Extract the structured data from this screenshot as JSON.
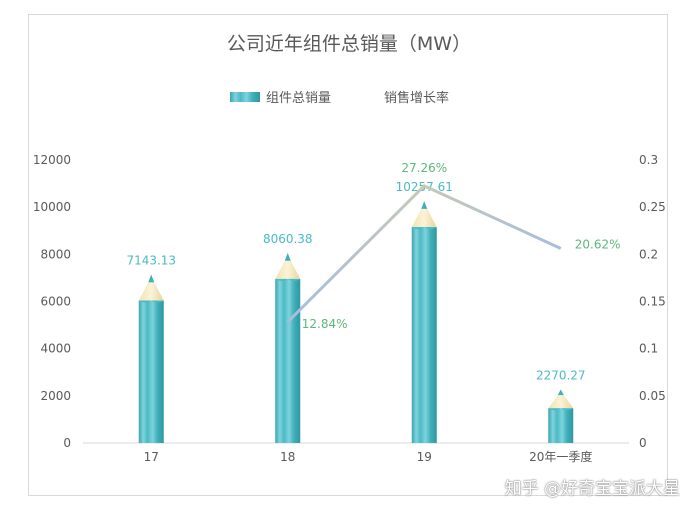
{
  "chart_data": {
    "type": "bar",
    "title": "公司近年组件总销量（MW）",
    "categories": [
      "17",
      "18",
      "19",
      "20年一季度"
    ],
    "series": [
      {
        "name": "组件总销量",
        "kind": "bar",
        "axis": "left",
        "values": [
          7143.13,
          8060.38,
          10257.61,
          2270.27
        ],
        "labels": [
          "7143.13",
          "8060.38",
          "10257.61",
          "2270.27"
        ],
        "color": "#4bbac4"
      },
      {
        "name": "销售增长率",
        "kind": "line",
        "axis": "right",
        "values": [
          null,
          0.1284,
          0.2726,
          0.2062
        ],
        "labels": [
          "",
          "12.84%",
          "27.26%",
          "20.62%"
        ],
        "color": "#b7c4d9"
      }
    ],
    "y_left": {
      "min": 0,
      "max": 12000,
      "ticks": [
        "0",
        "2000",
        "4000",
        "6000",
        "8000",
        "10000",
        "12000"
      ]
    },
    "y_right": {
      "min": 0,
      "max": 0.3,
      "ticks": [
        "0",
        "0.05",
        "0.1",
        "0.15",
        "0.2",
        "0.25",
        "0.3"
      ]
    },
    "legend_position": "top",
    "grid": false
  },
  "watermark": "知乎 @好奇宝宝派大星",
  "colors": {
    "bar_label": "#4bbac4",
    "line_label": "#5cb87a",
    "axis_text": "#595959",
    "title": "#595959"
  }
}
